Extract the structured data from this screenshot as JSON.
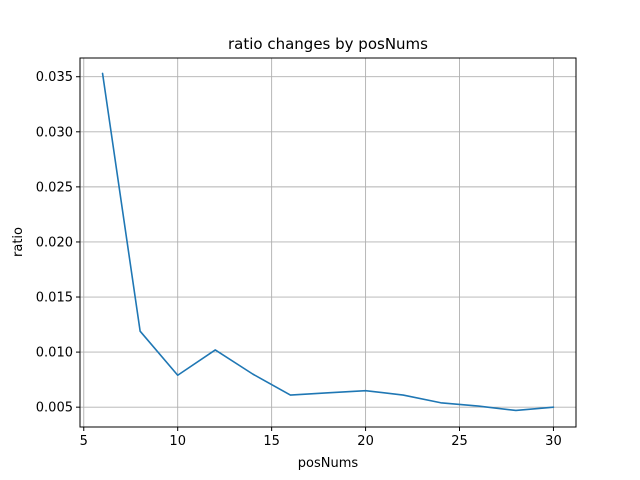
{
  "chart_data": {
    "type": "line",
    "title": "ratio changes by posNums",
    "xlabel": "posNums",
    "ylabel": "ratio",
    "xlim": [
      4.8,
      31.2
    ],
    "ylim": [
      0.0032,
      0.0367
    ],
    "xticks": [
      5,
      10,
      15,
      20,
      25,
      30
    ],
    "xtick_labels": [
      "5",
      "10",
      "15",
      "20",
      "25",
      "30"
    ],
    "yticks": [
      0.005,
      0.01,
      0.015,
      0.02,
      0.025,
      0.03,
      0.035
    ],
    "ytick_labels": [
      "0.005",
      "0.010",
      "0.015",
      "0.020",
      "0.025",
      "0.030",
      "0.035"
    ],
    "grid": true,
    "series": [
      {
        "color": "#1f77b4",
        "x": [
          6,
          8,
          10,
          12,
          14,
          16,
          18,
          20,
          22,
          24,
          26,
          28,
          30
        ],
        "y": [
          0.0353,
          0.0119,
          0.0079,
          0.0102,
          0.008,
          0.0061,
          0.0063,
          0.0065,
          0.0061,
          0.0054,
          0.0051,
          0.0047,
          0.005
        ]
      }
    ]
  }
}
